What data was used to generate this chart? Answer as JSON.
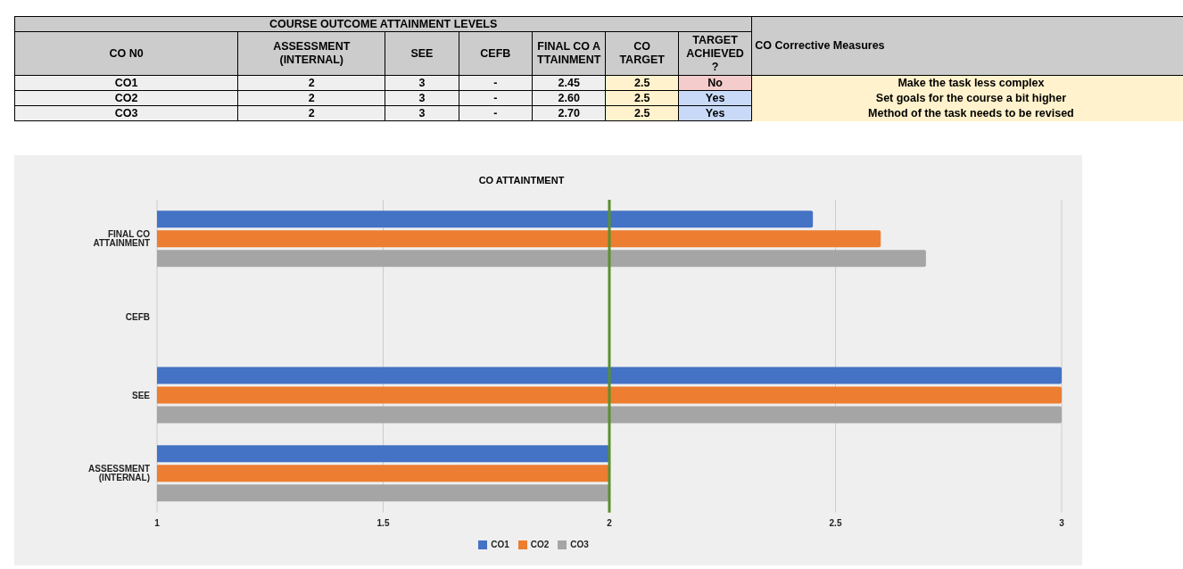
{
  "chart_data": [
    {
      "type": "other",
      "title": "COURSE OUTCOME ATTAINMENT LEVELS",
      "categories": [
        "CO N0",
        "ASSESSMENT (INTERNAL)",
        "SEE",
        "CEFB",
        "FINAL CO ATTAINMENT",
        "CO TARGET",
        "TARGET ACHIEVED ?",
        "CO Corrective Measures"
      ],
      "y_categories": [
        "CO1",
        "CO2",
        "CO3"
      ],
      "cell_labels": [
        [
          "2",
          "3",
          "-",
          "2.45",
          "2.5",
          "No",
          "Make the task less complex"
        ],
        [
          "2",
          "3",
          "-",
          "2.60",
          "2.5",
          "Yes",
          "Set goals for the course a bit higher"
        ],
        [
          "2",
          "3",
          "-",
          "2.70",
          "2.5",
          "Yes",
          "Method of the task needs to be revised"
        ]
      ]
    },
    {
      "type": "bar",
      "orientation": "horizontal",
      "title": "CO ATTAINTMENT",
      "categories": [
        "FINAL CO ATTAINMENT",
        "CEFB",
        "SEE",
        "ASSESSMENT (INTERNAL)"
      ],
      "series": [
        {
          "name": "CO1",
          "color": "#4472c4",
          "values": [
            2.45,
            null,
            3,
            2
          ]
        },
        {
          "name": "CO2",
          "color": "#ed7d31",
          "values": [
            2.6,
            null,
            3,
            2
          ]
        },
        {
          "name": "CO3",
          "color": "#a5a5a5",
          "values": [
            2.7,
            null,
            3,
            2
          ]
        }
      ],
      "xlim": [
        1,
        3
      ],
      "xticks": [
        1,
        1.5,
        2,
        2.5,
        3
      ],
      "grid": "x",
      "legend": "bottom",
      "ref_lines": [
        {
          "axis": "x",
          "value": 2,
          "color": "#5b8f2f"
        }
      ]
    }
  ]
}
